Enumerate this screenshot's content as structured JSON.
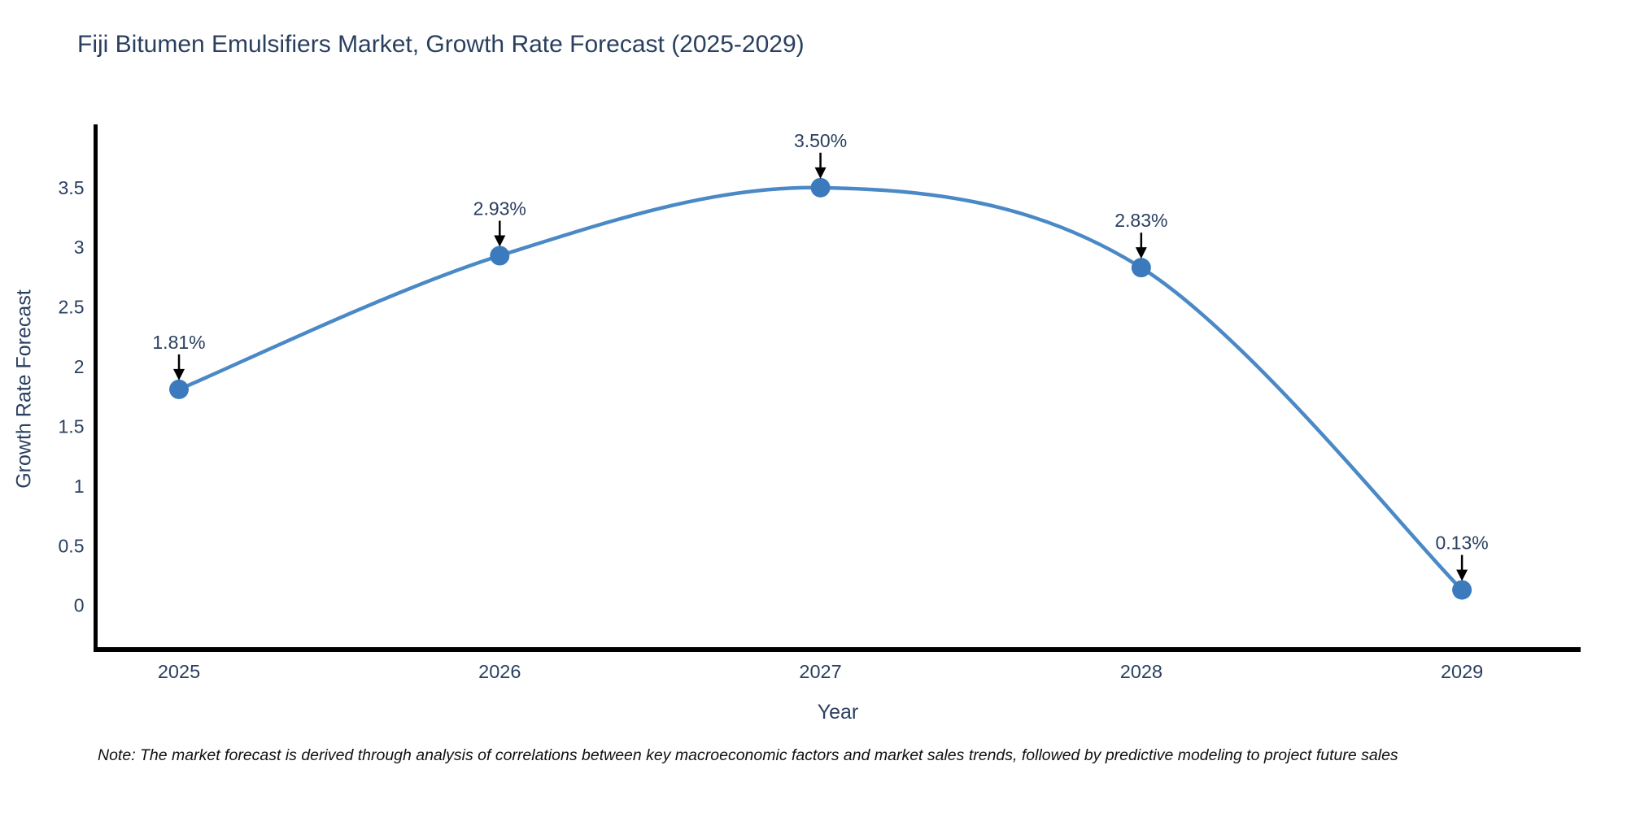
{
  "title": "Fiji Bitumen Emulsifiers Market, Growth Rate Forecast (2025-2029)",
  "footnote": "Note: The market forecast is derived through analysis of correlations between key macroeconomic factors and market sales trends, followed by predictive modeling to project future sales",
  "chart_data": {
    "type": "line",
    "title": "Fiji Bitumen Emulsifiers Market, Growth Rate Forecast (2025-2029)",
    "xlabel": "Year",
    "ylabel": "Growth Rate Forecast",
    "categories": [
      2025,
      2026,
      2027,
      2028,
      2029
    ],
    "values": [
      1.81,
      2.93,
      3.5,
      2.83,
      0.13
    ],
    "point_labels": [
      "1.81%",
      "2.93%",
      "3.50%",
      "2.83%",
      "0.13%"
    ],
    "yticks": [
      0,
      0.5,
      1,
      1.5,
      2,
      2.5,
      3,
      3.5
    ],
    "ylim": [
      -0.37,
      4.03
    ],
    "xlim": [
      2024.74,
      2029.37
    ],
    "line_shape": "spline",
    "grid": false,
    "legend": "none",
    "colors": {
      "line": "#4a89c6",
      "marker": "#3b7abc",
      "axis_line": "#000000",
      "tick_text": "#2a3f5f",
      "annotation_text": "#2a3f5f",
      "annotation_arrow": "#000000",
      "background": "#ffffff"
    }
  }
}
